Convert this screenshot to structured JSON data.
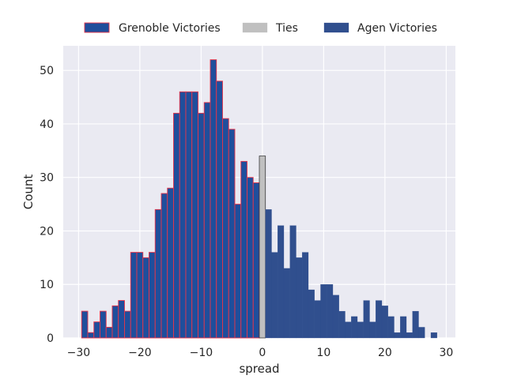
{
  "chart_data": {
    "type": "bar",
    "title": "",
    "xlabel": "spread",
    "ylabel": "Count",
    "xlim": [
      -32.5,
      31.5
    ],
    "ylim": [
      0,
      54.6
    ],
    "x_ticks": [
      -30,
      -20,
      -10,
      0,
      10,
      20,
      30
    ],
    "x_tick_labels": [
      "−30",
      "−20",
      "−10",
      "0",
      "10",
      "20",
      "30"
    ],
    "y_ticks": [
      0,
      10,
      20,
      30,
      40,
      50
    ],
    "y_tick_labels": [
      "0",
      "10",
      "20",
      "30",
      "40",
      "50"
    ],
    "grid": true,
    "legend_position": "top-center, outside",
    "colors": {
      "background": "#eaeaf2",
      "grid": "#ffffff",
      "grenoble_fill": "#1f4e9c",
      "grenoble_edge": "#e8364a",
      "ties_fill": "#c0c0c0",
      "ties_edge": "#262626",
      "agen_fill": "#304f8e",
      "agen_edge": "#304f8e"
    },
    "series": [
      {
        "name": "Grenoble Victories",
        "x": [
          -29,
          -28,
          -27,
          -26,
          -25,
          -24,
          -23,
          -22,
          -21,
          -20,
          -19,
          -18,
          -17,
          -16,
          -15,
          -14,
          -13,
          -12,
          -11,
          -10,
          -9,
          -8,
          -7,
          -6,
          -5,
          -4,
          -3,
          -2,
          -1
        ],
        "values": [
          5,
          1,
          3,
          5,
          2,
          6,
          7,
          5,
          16,
          16,
          15,
          16,
          24,
          27,
          28,
          42,
          46,
          46,
          46,
          42,
          44,
          52,
          48,
          41,
          39,
          25,
          33,
          30,
          29
        ]
      },
      {
        "name": "Ties",
        "x": [
          0
        ],
        "values": [
          34
        ]
      },
      {
        "name": "Agen Victories",
        "x": [
          1,
          2,
          3,
          4,
          5,
          6,
          7,
          8,
          9,
          10,
          11,
          12,
          13,
          14,
          15,
          16,
          17,
          18,
          19,
          20,
          21,
          22,
          23,
          24,
          25,
          26,
          28
        ],
        "values": [
          24,
          16,
          21,
          13,
          21,
          15,
          16,
          9,
          7,
          10,
          10,
          8,
          5,
          3,
          4,
          3,
          7,
          3,
          7,
          6,
          4,
          1,
          4,
          1,
          5,
          2,
          1
        ]
      }
    ]
  }
}
